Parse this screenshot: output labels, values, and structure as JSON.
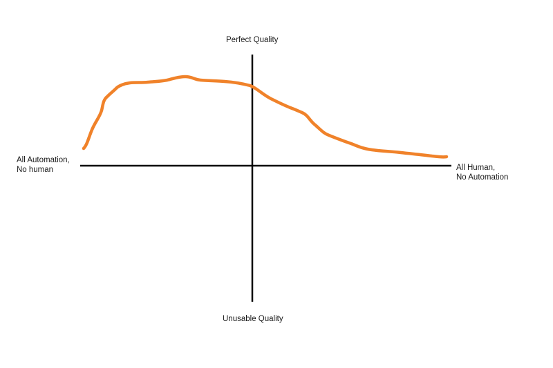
{
  "diagram": {
    "top_label": "Perfect Quality",
    "bottom_label": "Unusable Quality",
    "left_label": [
      "All Automation,",
      "No human"
    ],
    "right_label": [
      "All Human,",
      "No Automation"
    ],
    "curve_color": "#f0822a",
    "axis_color": "#000000"
  }
}
